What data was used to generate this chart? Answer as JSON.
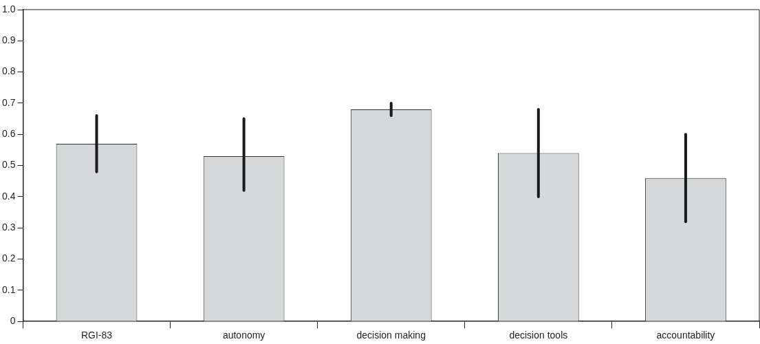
{
  "chart_data": {
    "type": "bar",
    "categories": [
      "RGI-83",
      "autonomy",
      "decision making",
      "decision tools",
      "accountability"
    ],
    "values": [
      0.57,
      0.53,
      0.68,
      0.54,
      0.46
    ],
    "errors": [
      [
        0.48,
        0.66
      ],
      [
        0.42,
        0.65
      ],
      [
        0.66,
        0.7
      ],
      [
        0.4,
        0.68
      ],
      [
        0.32,
        0.6
      ]
    ],
    "color": "#d6d7d9",
    "ylim": [
      0,
      1.0
    ],
    "yticks": [
      0,
      {
        "value": 0.1,
        "label": "0.1"
      },
      {
        "value": 0.2,
        "label": "0.2"
      },
      {
        "value": 0.3,
        "label": "0.3"
      },
      {
        "value": 0.4,
        "label": "0.4"
      },
      {
        "value": 0.5,
        "label": "0.5"
      },
      {
        "value": 0.6,
        "label": "0.6"
      },
      {
        "value": 0.7,
        "label": "0.7"
      },
      {
        "value": 0.8,
        "label": "0.8"
      },
      {
        "value": 0.9,
        "label": "0.9"
      },
      {
        "value": 1.0,
        "label": "1.0"
      }
    ],
    "grid": false,
    "legend": false
  }
}
